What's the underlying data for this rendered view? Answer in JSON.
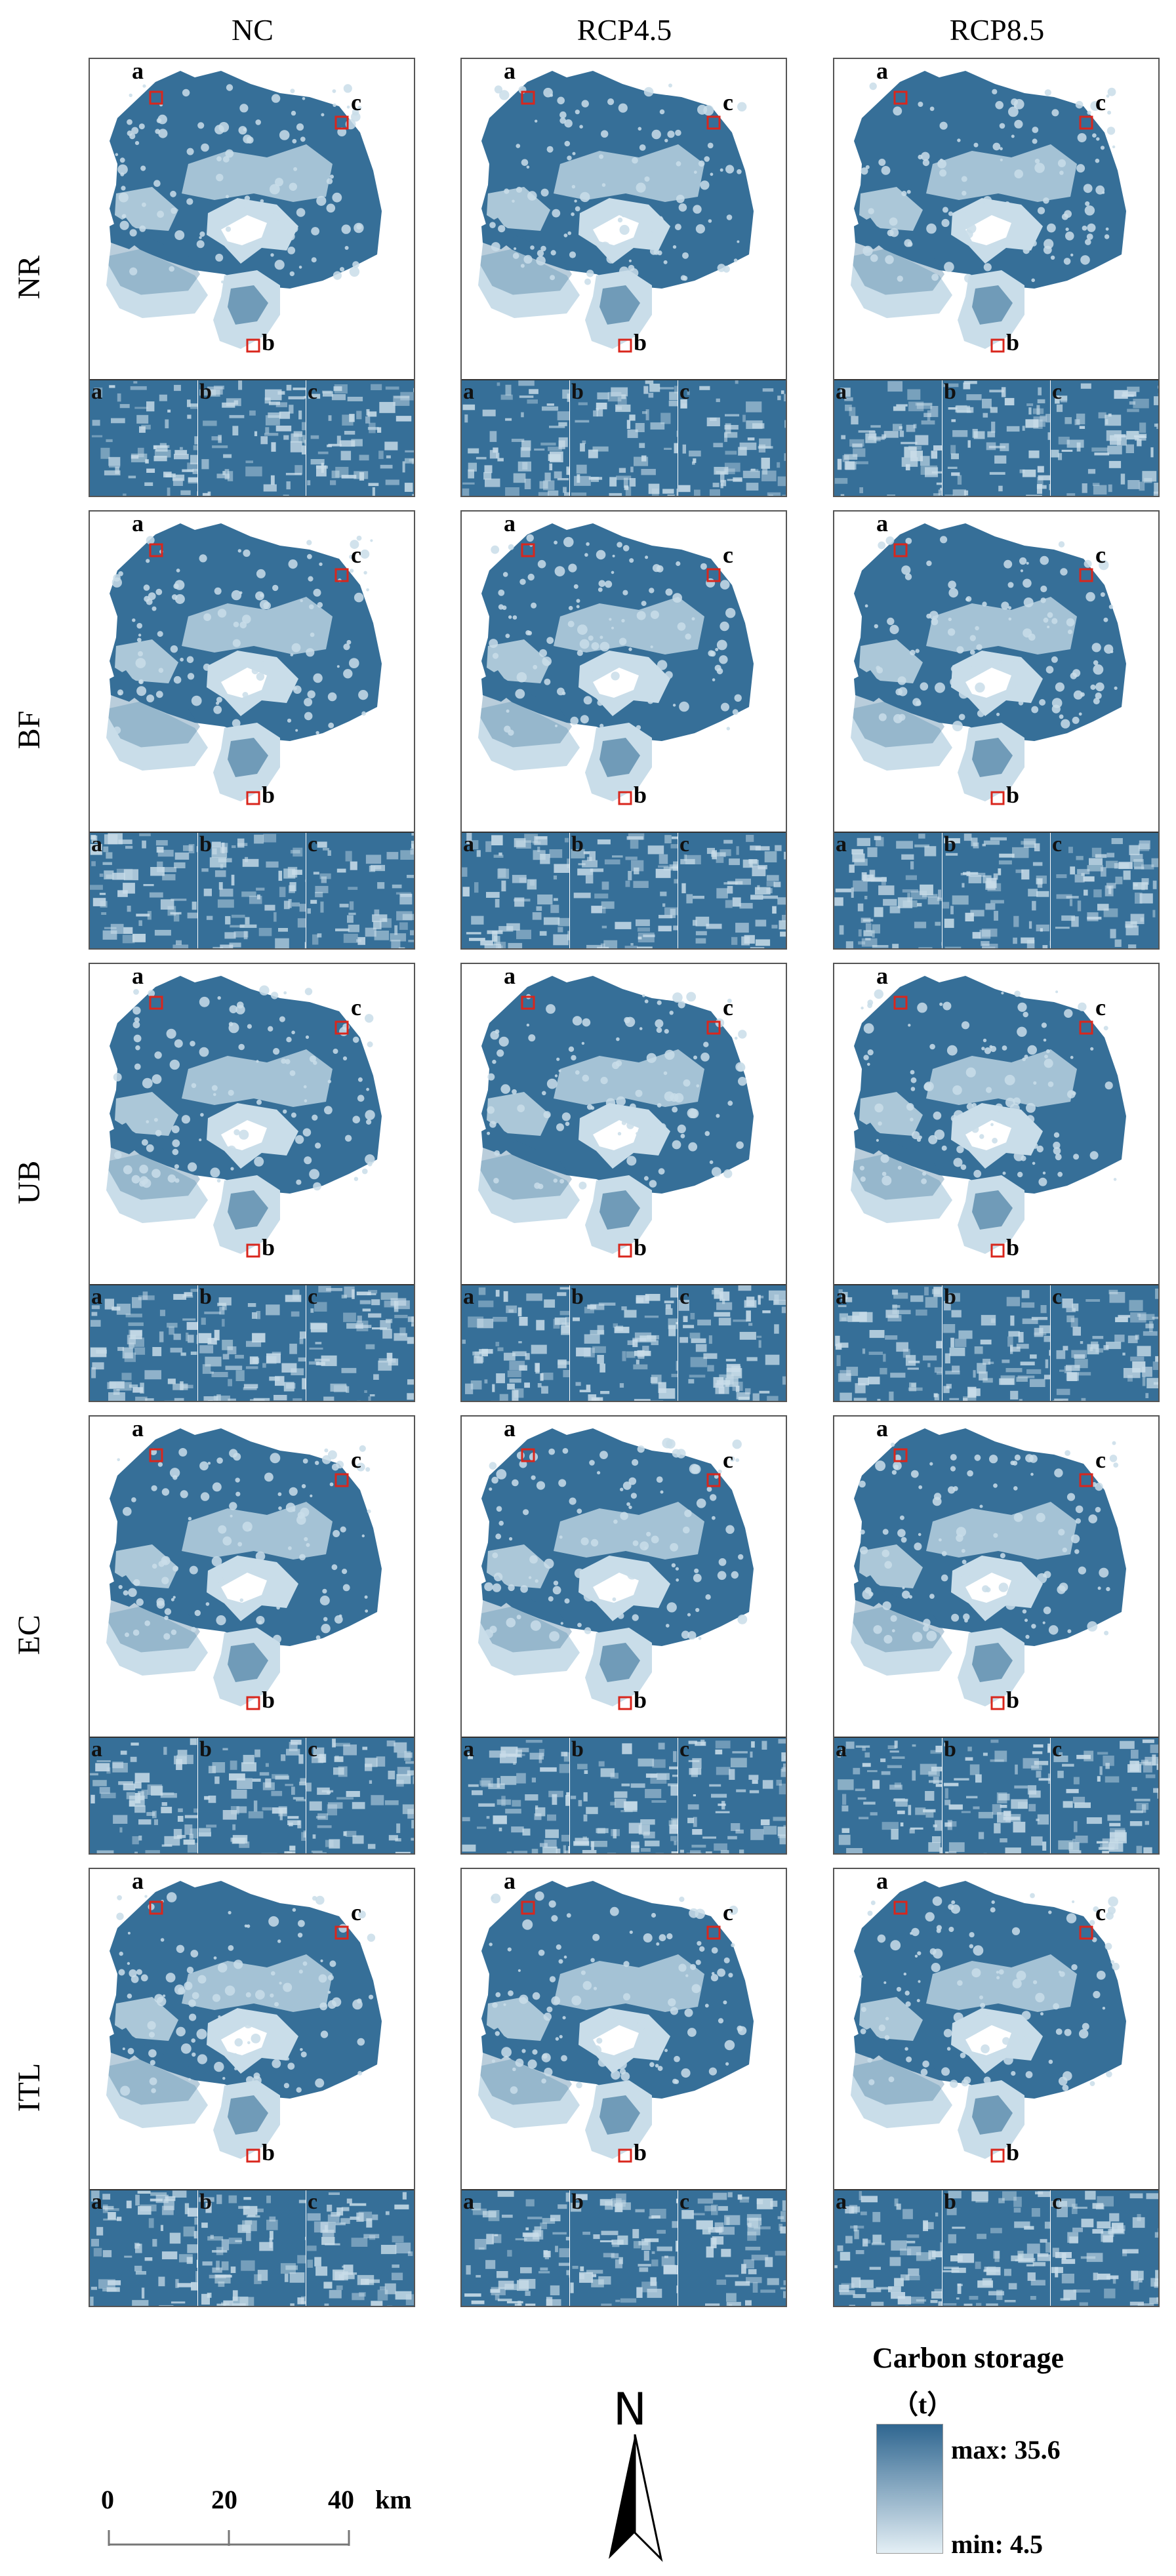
{
  "columns": [
    "NC",
    "RCP4.5",
    "RCP8.5"
  ],
  "rows": [
    "NR",
    "BF",
    "UB",
    "EC",
    "ITL"
  ],
  "marker_labels": [
    "a",
    "b",
    "c"
  ],
  "zoom_labels": [
    "a",
    "b",
    "c"
  ],
  "legend": {
    "title": "Carbon storage",
    "unit": "（t）",
    "max_label": "max: 35.6",
    "min_label": "min: 4.5",
    "max_value": 35.6,
    "min_value": 4.5,
    "color_high": "#2f6690",
    "color_low": "#e4eff5"
  },
  "north_arrow": {
    "label": "N"
  },
  "scale_bar": {
    "ticks": [
      "0",
      "20",
      "40"
    ],
    "unit": "km"
  },
  "colors": {
    "dark": "#366f98",
    "light": "#c9dde9",
    "marker": "#d9261c",
    "frame": "#555555"
  }
}
